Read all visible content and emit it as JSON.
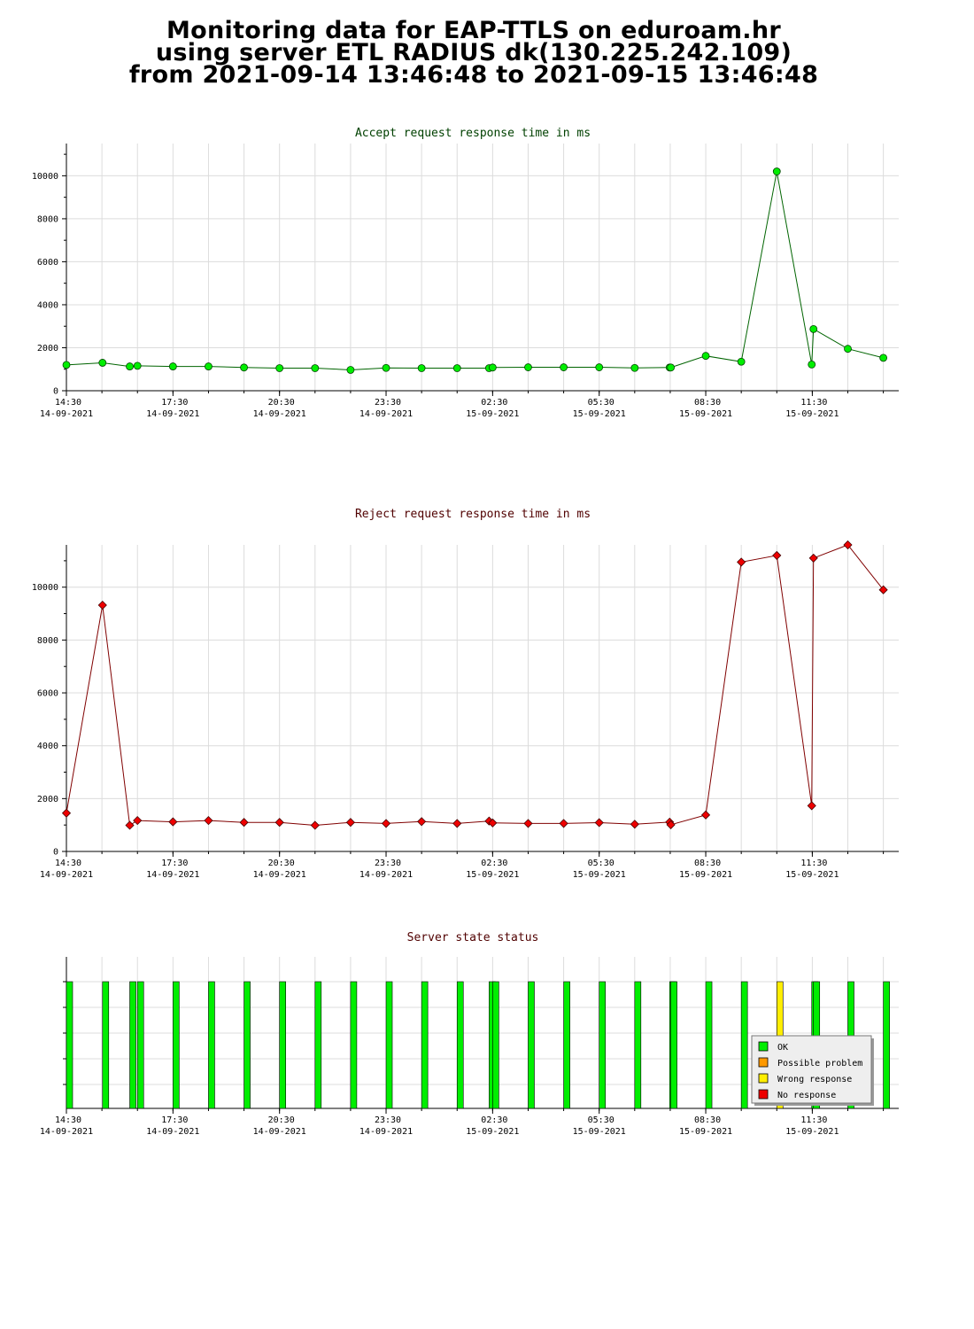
{
  "header": {
    "line1": "Monitoring data for EAP-TTLS on eduroam.hr",
    "line2": "using server ETL RADIUS dk(130.225.242.109)",
    "line3": "from 2021-09-14 13:46:48 to 2021-09-15 13:46:48"
  },
  "colors": {
    "accept_line": "#006400",
    "accept_marker": "#00ee00",
    "reject_line": "#800000",
    "reject_marker": "#ee0000",
    "title_accept": "#004000",
    "title_reject": "#500000",
    "ok": "#00ee00",
    "possible_problem": "#ff9900",
    "wrong_response": "#ffee00",
    "no_response": "#ee0000"
  },
  "time_axis": [
    {
      "time": "14:30",
      "date": "14-09-2021"
    },
    {
      "time": "17:30",
      "date": "14-09-2021"
    },
    {
      "time": "20:30",
      "date": "14-09-2021"
    },
    {
      "time": "23:30",
      "date": "14-09-2021"
    },
    {
      "time": "02:30",
      "date": "15-09-2021"
    },
    {
      "time": "05:30",
      "date": "15-09-2021"
    },
    {
      "time": "08:30",
      "date": "15-09-2021"
    },
    {
      "time": "11:30",
      "date": "15-09-2021"
    }
  ],
  "chart_data": [
    {
      "type": "line",
      "title": "Accept request response time in ms",
      "xlabel": "",
      "ylabel": "",
      "x_range": [
        "2021-09-14 14:30",
        "2021-09-15 13:56"
      ],
      "ylim": [
        0,
        11500
      ],
      "yticks": [
        0,
        2000,
        4000,
        6000,
        8000,
        10000
      ],
      "grid": true,
      "series": [
        {
          "x": [
            "2021-09-14 14:30",
            "2021-09-14 15:31",
            "2021-09-14 16:17",
            "2021-09-14 16:30",
            "2021-09-14 17:30",
            "2021-09-14 18:30",
            "2021-09-14 19:30",
            "2021-09-14 20:30",
            "2021-09-14 21:30",
            "2021-09-14 22:30",
            "2021-09-14 23:30",
            "2021-09-15 00:30",
            "2021-09-15 01:30",
            "2021-09-15 02:24",
            "2021-09-15 02:30",
            "2021-09-15 03:30",
            "2021-09-15 04:30",
            "2021-09-15 05:30",
            "2021-09-15 06:30",
            "2021-09-15 07:29",
            "2021-09-15 07:31",
            "2021-09-15 08:30",
            "2021-09-15 09:30",
            "2021-09-15 10:30",
            "2021-09-15 11:29",
            "2021-09-15 11:32",
            "2021-09-15 12:30",
            "2021-09-15 13:30"
          ],
          "y": [
            1200,
            1300,
            1130,
            1160,
            1130,
            1130,
            1080,
            1050,
            1050,
            970,
            1060,
            1050,
            1050,
            1050,
            1080,
            1090,
            1090,
            1090,
            1060,
            1080,
            1080,
            1620,
            1350,
            10200,
            1220,
            2870,
            1950,
            1530
          ]
        }
      ]
    },
    {
      "type": "line",
      "title": "Reject request response time in ms",
      "xlabel": "",
      "ylabel": "",
      "x_range": [
        "2021-09-14 14:30",
        "2021-09-15 13:56"
      ],
      "ylim": [
        0,
        11600
      ],
      "yticks": [
        0,
        2000,
        4000,
        6000,
        8000,
        10000
      ],
      "grid": true,
      "series": [
        {
          "x": [
            "2021-09-14 14:30",
            "2021-09-14 15:31",
            "2021-09-14 16:17",
            "2021-09-14 16:30",
            "2021-09-14 17:30",
            "2021-09-14 18:30",
            "2021-09-14 19:30",
            "2021-09-14 20:30",
            "2021-09-14 21:30",
            "2021-09-14 22:30",
            "2021-09-14 23:30",
            "2021-09-15 00:30",
            "2021-09-15 01:30",
            "2021-09-15 02:24",
            "2021-09-15 02:30",
            "2021-09-15 03:30",
            "2021-09-15 04:30",
            "2021-09-15 05:30",
            "2021-09-15 06:30",
            "2021-09-15 07:29",
            "2021-09-15 07:31",
            "2021-09-15 08:30",
            "2021-09-15 09:30",
            "2021-09-15 10:30",
            "2021-09-15 11:29",
            "2021-09-15 11:32",
            "2021-09-15 12:30",
            "2021-09-15 13:30"
          ],
          "y": [
            1450,
            9320,
            990,
            1170,
            1120,
            1170,
            1100,
            1100,
            990,
            1100,
            1060,
            1130,
            1060,
            1150,
            1080,
            1060,
            1060,
            1090,
            1030,
            1110,
            1010,
            1380,
            10950,
            11200,
            1730,
            11100,
            11600,
            9900
          ]
        }
      ]
    },
    {
      "type": "bar",
      "title": "Server state status",
      "xlabel": "",
      "ylabel": "",
      "x_range": [
        "2021-09-14 14:30",
        "2021-09-15 13:56"
      ],
      "grid": true,
      "legend": {
        "position": "bottom-right",
        "entries": [
          {
            "label": "OK",
            "color": "#00ee00"
          },
          {
            "label": "Possible problem",
            "color": "#ff9900"
          },
          {
            "label": "Wrong response",
            "color": "#ffee00"
          },
          {
            "label": "No response",
            "color": "#ee0000"
          }
        ]
      },
      "bars": [
        {
          "x": "2021-09-14 14:30",
          "state": "OK"
        },
        {
          "x": "2021-09-14 15:31",
          "state": "OK"
        },
        {
          "x": "2021-09-14 16:17",
          "state": "OK"
        },
        {
          "x": "2021-09-14 16:30",
          "state": "OK"
        },
        {
          "x": "2021-09-14 17:30",
          "state": "OK"
        },
        {
          "x": "2021-09-14 18:30",
          "state": "OK"
        },
        {
          "x": "2021-09-14 19:30",
          "state": "OK"
        },
        {
          "x": "2021-09-14 20:30",
          "state": "OK"
        },
        {
          "x": "2021-09-14 21:30",
          "state": "OK"
        },
        {
          "x": "2021-09-14 22:30",
          "state": "OK"
        },
        {
          "x": "2021-09-14 23:30",
          "state": "OK"
        },
        {
          "x": "2021-09-15 00:30",
          "state": "OK"
        },
        {
          "x": "2021-09-15 01:30",
          "state": "OK"
        },
        {
          "x": "2021-09-15 02:24",
          "state": "OK"
        },
        {
          "x": "2021-09-15 02:30",
          "state": "OK"
        },
        {
          "x": "2021-09-15 03:30",
          "state": "OK"
        },
        {
          "x": "2021-09-15 04:30",
          "state": "OK"
        },
        {
          "x": "2021-09-15 05:30",
          "state": "OK"
        },
        {
          "x": "2021-09-15 06:30",
          "state": "OK"
        },
        {
          "x": "2021-09-15 07:29",
          "state": "OK"
        },
        {
          "x": "2021-09-15 07:31",
          "state": "OK"
        },
        {
          "x": "2021-09-15 08:30",
          "state": "OK"
        },
        {
          "x": "2021-09-15 09:30",
          "state": "OK"
        },
        {
          "x": "2021-09-15 10:30",
          "state": "Wrong response"
        },
        {
          "x": "2021-09-15 11:29",
          "state": "OK"
        },
        {
          "x": "2021-09-15 11:32",
          "state": "OK"
        },
        {
          "x": "2021-09-15 12:30",
          "state": "OK"
        },
        {
          "x": "2021-09-15 13:30",
          "state": "OK"
        }
      ]
    }
  ]
}
